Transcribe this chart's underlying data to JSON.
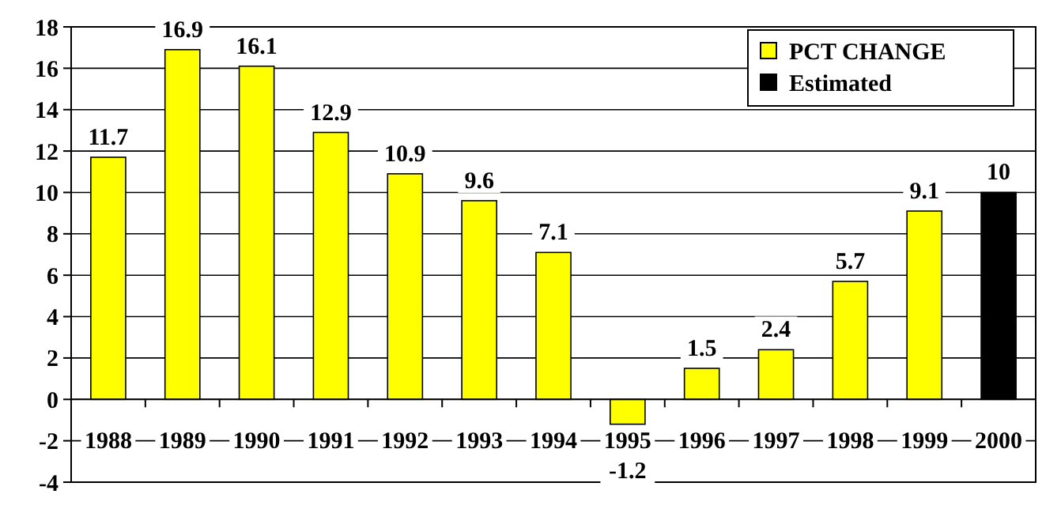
{
  "chart_data": {
    "type": "bar",
    "categories": [
      "1988",
      "1989",
      "1990",
      "1991",
      "1992",
      "1993",
      "1994",
      "1995",
      "1996",
      "1997",
      "1998",
      "1999",
      "2000"
    ],
    "series": [
      {
        "name": "PCT CHANGE",
        "color": "#ffff00",
        "values": [
          11.7,
          16.9,
          16.1,
          12.9,
          10.9,
          9.6,
          7.1,
          -1.2,
          1.5,
          2.4,
          5.7,
          9.1,
          null
        ]
      },
      {
        "name": "Estimated",
        "color": "#000000",
        "values": [
          null,
          null,
          null,
          null,
          null,
          null,
          null,
          null,
          null,
          null,
          null,
          null,
          10
        ]
      }
    ],
    "ylim": [
      -4,
      18
    ],
    "yticks": [
      -4,
      -2,
      0,
      2,
      4,
      6,
      8,
      10,
      12,
      14,
      16,
      18
    ],
    "grid": "y",
    "legend": "top right",
    "data_labels": true
  }
}
